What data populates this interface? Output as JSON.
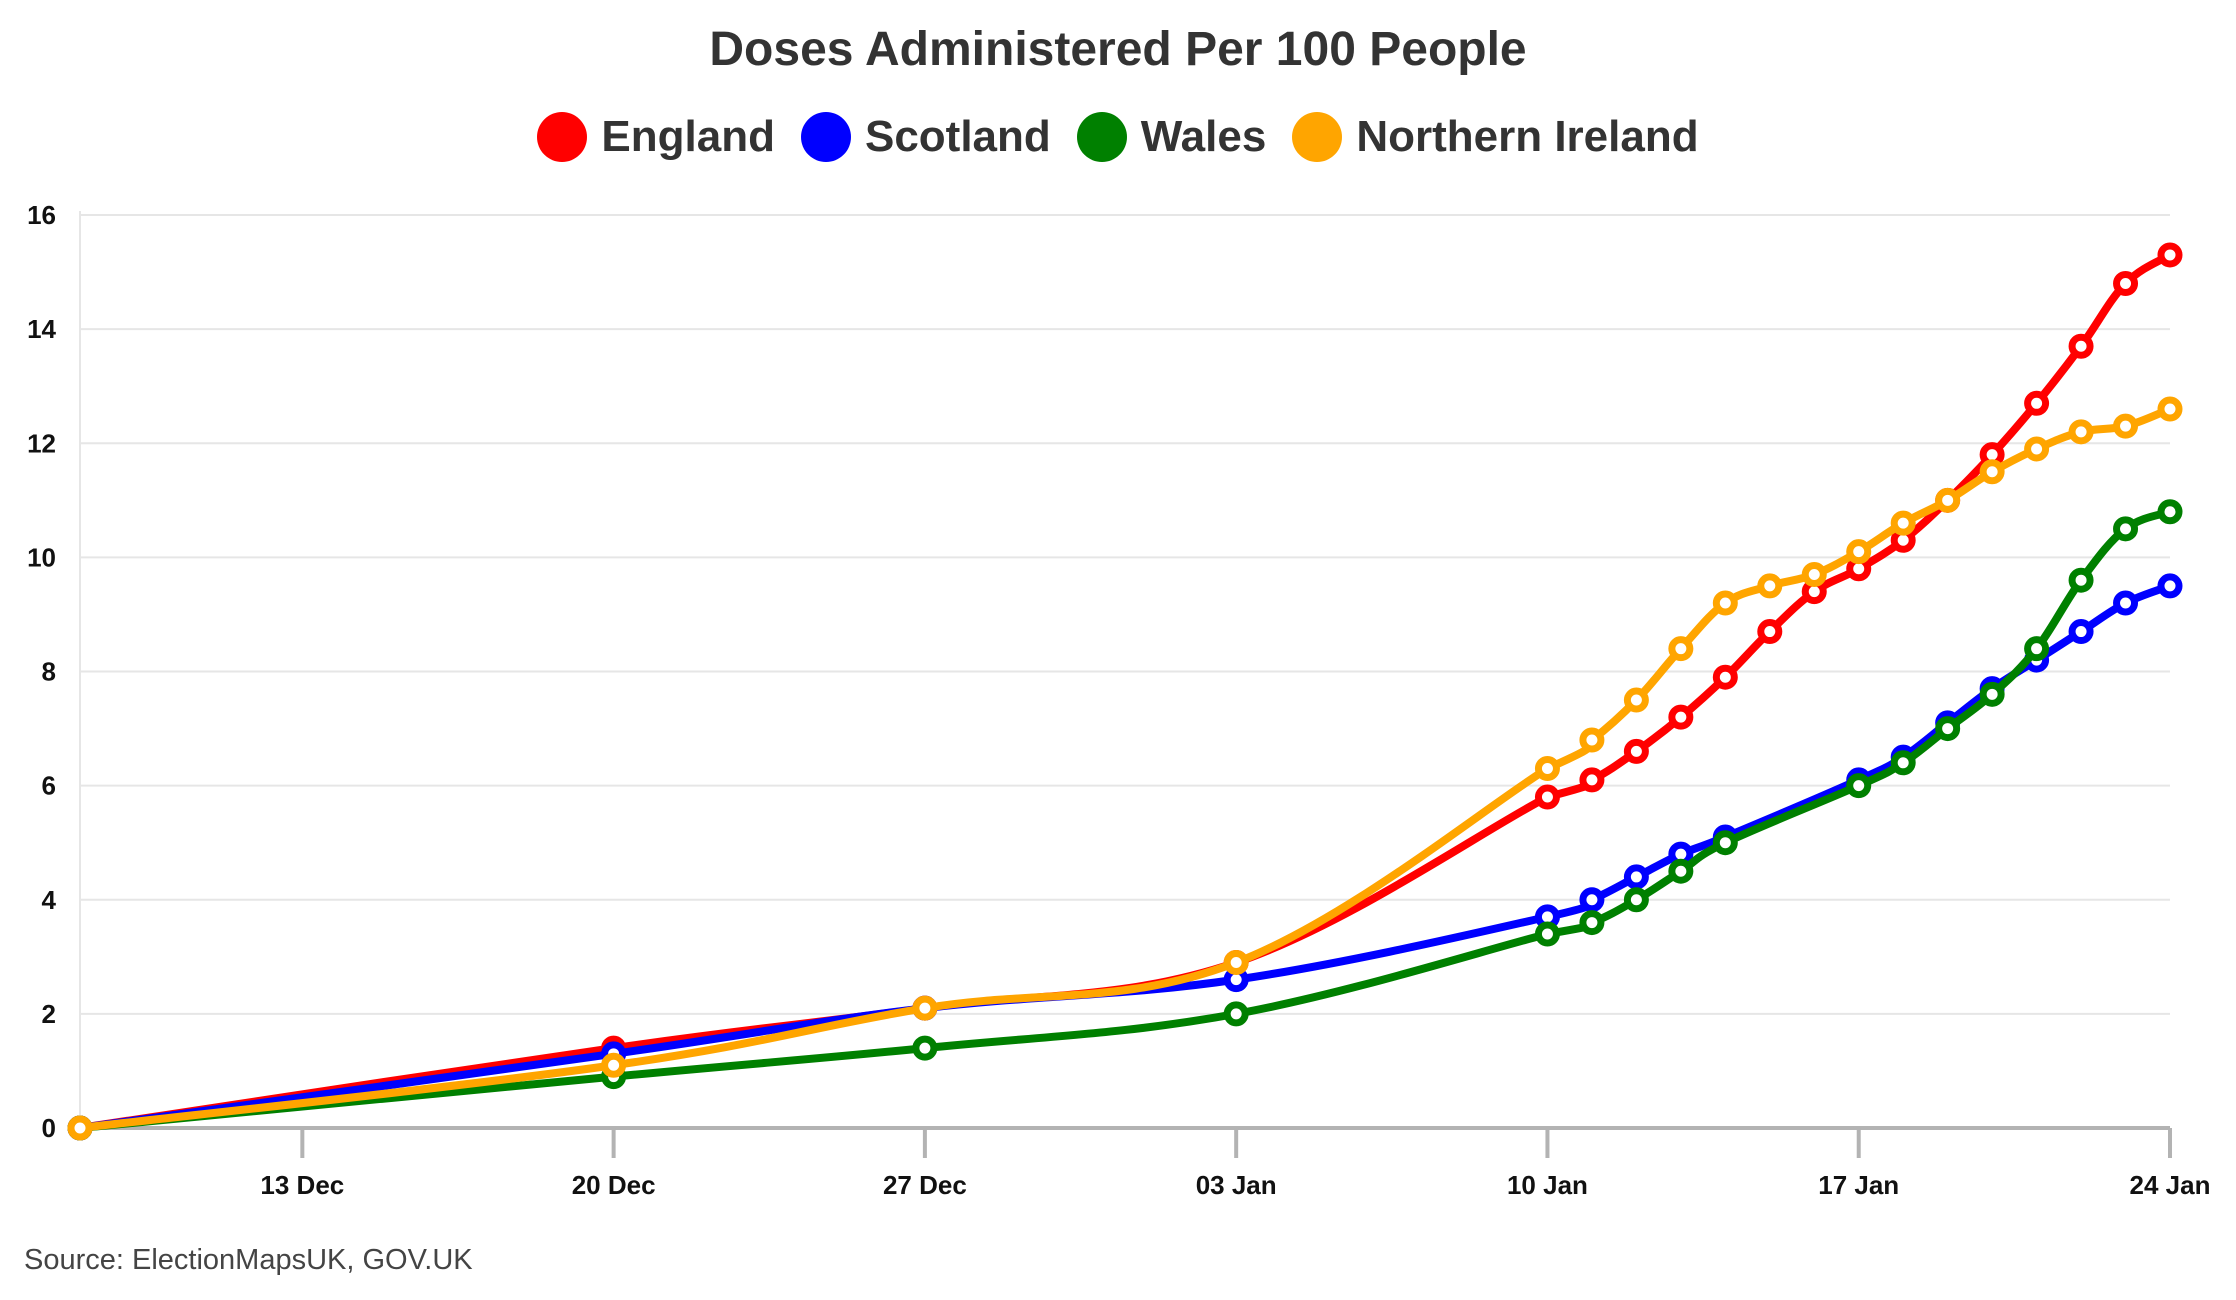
{
  "chart_data": {
    "type": "line",
    "title": "Doses Administered Per 100 People",
    "xlabel": "",
    "ylabel": "",
    "ylim": [
      0,
      16
    ],
    "yticks": [
      0,
      2,
      4,
      6,
      8,
      10,
      12,
      14,
      16
    ],
    "xlim_days": [
      0,
      47
    ],
    "xticks": [
      {
        "day": 5,
        "label": "13 Dec"
      },
      {
        "day": 12,
        "label": "20 Dec"
      },
      {
        "day": 19,
        "label": "27 Dec"
      },
      {
        "day": 26,
        "label": "03 Jan"
      },
      {
        "day": 33,
        "label": "10 Jan"
      },
      {
        "day": 40,
        "label": "17 Jan"
      },
      {
        "day": 47,
        "label": "24 Jan"
      }
    ],
    "x_unit_note": "day 0 = 08 Dec",
    "x": [
      0,
      12,
      19,
      26,
      33,
      34,
      35,
      36,
      37,
      38,
      39,
      40,
      41,
      42,
      43,
      44,
      45,
      46,
      47
    ],
    "series": [
      {
        "name": "England",
        "color": "#ff0000",
        "values": [
          0,
          1.4,
          2.1,
          2.9,
          5.8,
          6.1,
          6.6,
          7.2,
          7.9,
          8.7,
          9.4,
          9.8,
          10.3,
          11.0,
          11.8,
          12.7,
          13.7,
          14.8,
          15.3
        ]
      },
      {
        "name": "Scotland",
        "color": "#0000ff",
        "values": [
          0,
          1.3,
          2.1,
          2.6,
          3.7,
          4.0,
          4.4,
          4.8,
          5.1,
          null,
          null,
          6.1,
          6.5,
          7.1,
          7.7,
          8.2,
          8.7,
          9.2,
          9.5
        ]
      },
      {
        "name": "Wales",
        "color": "#008000",
        "values": [
          0,
          0.9,
          1.4,
          2.0,
          3.4,
          3.6,
          4.0,
          4.5,
          5.0,
          null,
          null,
          6.0,
          6.4,
          7.0,
          7.6,
          8.4,
          9.6,
          10.5,
          10.8
        ]
      },
      {
        "name": "Northern Ireland",
        "color": "#ffa500",
        "values": [
          0,
          1.1,
          2.1,
          2.9,
          6.3,
          6.8,
          7.5,
          8.4,
          9.2,
          9.5,
          9.7,
          10.1,
          10.6,
          11.0,
          11.5,
          11.9,
          12.2,
          12.3,
          12.6
        ]
      }
    ],
    "legend_position": "top-center",
    "grid": true
  },
  "source_text": "Source: ElectionMapsUK, GOV.UK"
}
